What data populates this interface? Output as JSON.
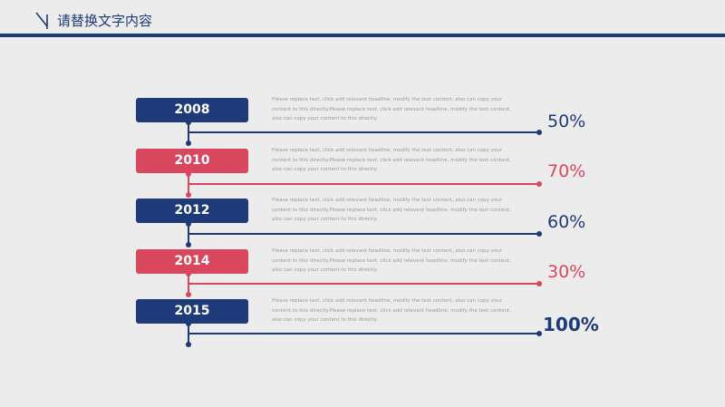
{
  "header": {
    "title": "请替换文字内容"
  },
  "colors": {
    "blue": "#1e3a78",
    "red": "#d9475e",
    "page": "#ececec"
  },
  "description_text": "Please replace text, click add relevant headline, modify the text content, also can copy your content to this directly.Please replace text, click add relevant headline, modify the text content, also can copy your content to this directly.",
  "items": [
    {
      "year": "2008",
      "percent": "50%",
      "color": "blue"
    },
    {
      "year": "2010",
      "percent": "70%",
      "color": "red"
    },
    {
      "year": "2012",
      "percent": "60%",
      "color": "blue"
    },
    {
      "year": "2014",
      "percent": "30%",
      "color": "red"
    },
    {
      "year": "2015",
      "percent": "100%",
      "color": "blue"
    }
  ]
}
